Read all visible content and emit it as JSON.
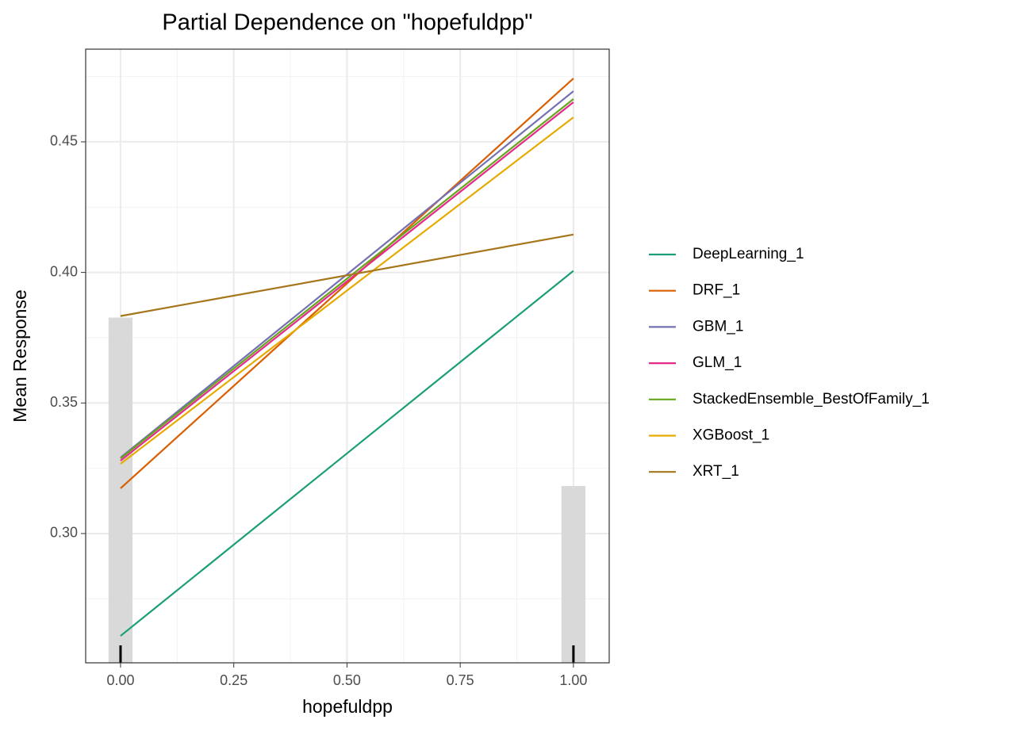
{
  "chart_data": {
    "type": "line",
    "title": "Partial Dependence on \"hopefuldpp\"",
    "x_label": "hopefuldpp",
    "y_label": "Mean Response",
    "x": [
      0,
      1
    ],
    "series": [
      {
        "name": "DeepLearning_1",
        "color": "#1b9e77",
        "values": [
          0.2608,
          0.4006
        ]
      },
      {
        "name": "DRF_1",
        "color": "#d95f02",
        "values": [
          0.3173,
          0.4743
        ]
      },
      {
        "name": "GBM_1",
        "color": "#7570b3",
        "values": [
          0.3291,
          0.4694
        ]
      },
      {
        "name": "GLM_1",
        "color": "#e7298a",
        "values": [
          0.3279,
          0.4652
        ]
      },
      {
        "name": "StackedEnsemble_BestOfFamily_1",
        "color": "#66a61e",
        "values": [
          0.3288,
          0.4664
        ]
      },
      {
        "name": "XGBoost_1",
        "color": "#e6ab02",
        "values": [
          0.3267,
          0.4594
        ]
      },
      {
        "name": "XRT_1",
        "color": "#a6761d",
        "values": [
          0.3833,
          0.4145
        ]
      }
    ],
    "histogram": {
      "x": [
        0,
        1
      ],
      "values": [
        0.3827,
        0.3182
      ],
      "bar_width": 0.053,
      "color": "#d9d9d9"
    },
    "rug": [
      0,
      1
    ],
    "xlim": [
      -0.077,
      1.079
    ],
    "ylim": [
      0.2505,
      0.4855
    ],
    "xticks": [
      {
        "value": 0,
        "label": "0.00"
      },
      {
        "value": 0.25,
        "label": "0.25"
      },
      {
        "value": 0.5,
        "label": "0.50"
      },
      {
        "value": 0.75,
        "label": "0.75"
      },
      {
        "value": 1,
        "label": "1.00"
      }
    ],
    "yticks": [
      {
        "value": 0.3,
        "label": "0.30"
      },
      0.35,
      {
        "value": 0.4,
        "label": "0.40"
      },
      0.45
    ],
    "grid": true,
    "legend": "right"
  }
}
